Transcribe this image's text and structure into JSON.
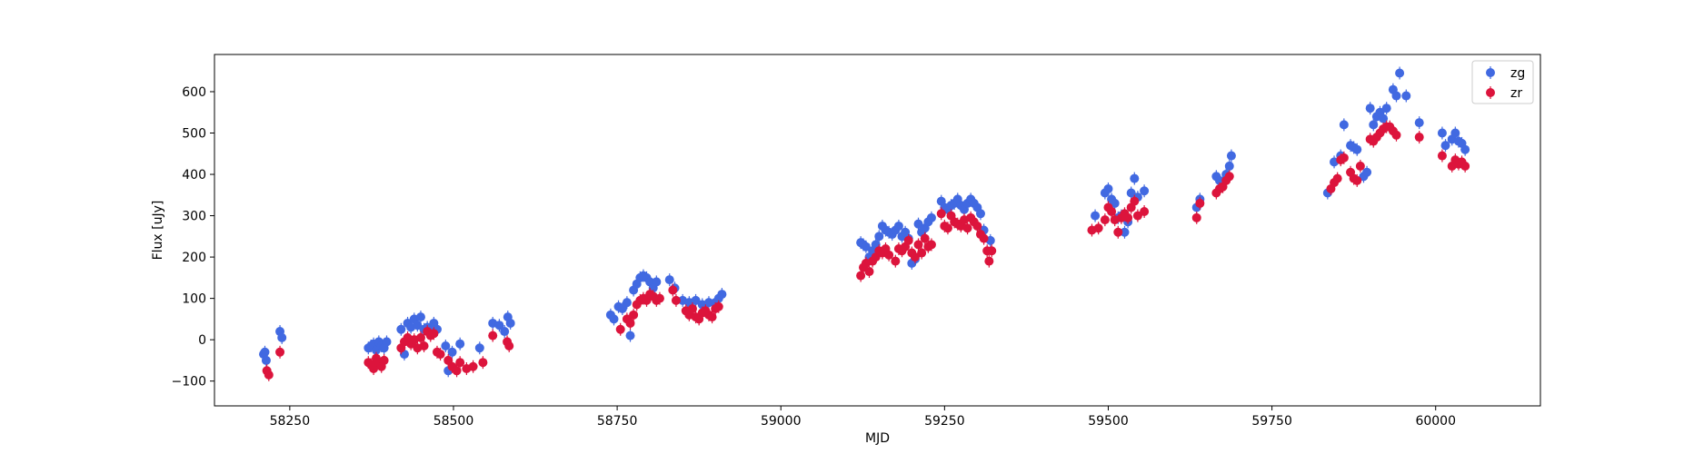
{
  "chart_data": {
    "type": "scatter",
    "title": "",
    "xlabel": "MJD",
    "ylabel": "Flux [uJy]",
    "xlim": [
      58135,
      60160
    ],
    "ylim": [
      -160,
      690
    ],
    "xticks": [
      58250,
      58500,
      58750,
      59000,
      59250,
      59500,
      59750,
      60000
    ],
    "yticks": [
      -100,
      0,
      100,
      200,
      300,
      400,
      500,
      600
    ],
    "grid": false,
    "legend_position": "top-right",
    "error_bars": true,
    "series": [
      {
        "name": "zg",
        "color": "#4169e1",
        "points": [
          [
            58210,
            -35
          ],
          [
            58212,
            -30
          ],
          [
            58214,
            -50
          ],
          [
            58235,
            20
          ],
          [
            58238,
            5
          ],
          [
            58370,
            -20
          ],
          [
            58374,
            -15
          ],
          [
            58378,
            -10
          ],
          [
            58382,
            -25
          ],
          [
            58386,
            -5
          ],
          [
            58390,
            -15
          ],
          [
            58394,
            -20
          ],
          [
            58398,
            -5
          ],
          [
            58420,
            25
          ],
          [
            58425,
            -35
          ],
          [
            58430,
            40
          ],
          [
            58435,
            30
          ],
          [
            58440,
            50
          ],
          [
            58445,
            35
          ],
          [
            58450,
            55
          ],
          [
            58455,
            25
          ],
          [
            58460,
            30
          ],
          [
            58465,
            20
          ],
          [
            58470,
            40
          ],
          [
            58475,
            25
          ],
          [
            58488,
            -15
          ],
          [
            58492,
            -75
          ],
          [
            58498,
            -30
          ],
          [
            58510,
            -10
          ],
          [
            58540,
            -20
          ],
          [
            58560,
            40
          ],
          [
            58570,
            35
          ],
          [
            58578,
            20
          ],
          [
            58583,
            55
          ],
          [
            58587,
            40
          ],
          [
            58740,
            60
          ],
          [
            58745,
            50
          ],
          [
            58752,
            80
          ],
          [
            58758,
            75
          ],
          [
            58765,
            90
          ],
          [
            58770,
            10
          ],
          [
            58775,
            120
          ],
          [
            58780,
            135
          ],
          [
            58785,
            150
          ],
          [
            58790,
            155
          ],
          [
            58795,
            150
          ],
          [
            58800,
            140
          ],
          [
            58805,
            125
          ],
          [
            58810,
            140
          ],
          [
            58830,
            145
          ],
          [
            58838,
            125
          ],
          [
            58850,
            95
          ],
          [
            58860,
            90
          ],
          [
            58870,
            95
          ],
          [
            58880,
            85
          ],
          [
            58890,
            90
          ],
          [
            58900,
            90
          ],
          [
            58905,
            100
          ],
          [
            58910,
            110
          ],
          [
            59122,
            235
          ],
          [
            59126,
            230
          ],
          [
            59130,
            225
          ],
          [
            59135,
            200
          ],
          [
            59140,
            215
          ],
          [
            59145,
            230
          ],
          [
            59150,
            250
          ],
          [
            59155,
            275
          ],
          [
            59160,
            265
          ],
          [
            59165,
            260
          ],
          [
            59170,
            255
          ],
          [
            59175,
            265
          ],
          [
            59180,
            275
          ],
          [
            59185,
            250
          ],
          [
            59190,
            260
          ],
          [
            59195,
            245
          ],
          [
            59200,
            185
          ],
          [
            59205,
            195
          ],
          [
            59210,
            280
          ],
          [
            59215,
            260
          ],
          [
            59220,
            270
          ],
          [
            59225,
            285
          ],
          [
            59230,
            295
          ],
          [
            59245,
            335
          ],
          [
            59250,
            320
          ],
          [
            59255,
            315
          ],
          [
            59260,
            325
          ],
          [
            59265,
            330
          ],
          [
            59270,
            340
          ],
          [
            59275,
            325
          ],
          [
            59280,
            315
          ],
          [
            59285,
            330
          ],
          [
            59290,
            340
          ],
          [
            59295,
            330
          ],
          [
            59300,
            320
          ],
          [
            59305,
            305
          ],
          [
            59310,
            265
          ],
          [
            59320,
            240
          ],
          [
            59480,
            300
          ],
          [
            59495,
            355
          ],
          [
            59500,
            365
          ],
          [
            59505,
            340
          ],
          [
            59510,
            330
          ],
          [
            59515,
            295
          ],
          [
            59520,
            300
          ],
          [
            59525,
            260
          ],
          [
            59530,
            285
          ],
          [
            59535,
            355
          ],
          [
            59540,
            390
          ],
          [
            59545,
            345
          ],
          [
            59555,
            360
          ],
          [
            59635,
            320
          ],
          [
            59640,
            340
          ],
          [
            59665,
            395
          ],
          [
            59670,
            385
          ],
          [
            59675,
            380
          ],
          [
            59680,
            400
          ],
          [
            59685,
            420
          ],
          [
            59688,
            445
          ],
          [
            59835,
            355
          ],
          [
            59845,
            430
          ],
          [
            59855,
            445
          ],
          [
            59860,
            520
          ],
          [
            59870,
            470
          ],
          [
            59875,
            465
          ],
          [
            59880,
            460
          ],
          [
            59890,
            395
          ],
          [
            59895,
            405
          ],
          [
            59900,
            560
          ],
          [
            59905,
            520
          ],
          [
            59910,
            540
          ],
          [
            59915,
            550
          ],
          [
            59920,
            535
          ],
          [
            59925,
            560
          ],
          [
            59935,
            605
          ],
          [
            59940,
            590
          ],
          [
            59945,
            645
          ],
          [
            59955,
            590
          ],
          [
            59975,
            525
          ],
          [
            60010,
            500
          ],
          [
            60015,
            470
          ],
          [
            60025,
            485
          ],
          [
            60030,
            500
          ],
          [
            60035,
            480
          ],
          [
            60040,
            475
          ],
          [
            60045,
            460
          ]
        ]
      },
      {
        "name": "zr",
        "color": "#dc143c",
        "points": [
          [
            58215,
            -75
          ],
          [
            58218,
            -85
          ],
          [
            58235,
            -30
          ],
          [
            58370,
            -55
          ],
          [
            58374,
            -60
          ],
          [
            58378,
            -70
          ],
          [
            58382,
            -45
          ],
          [
            58386,
            -55
          ],
          [
            58390,
            -65
          ],
          [
            58394,
            -50
          ],
          [
            58420,
            -20
          ],
          [
            58425,
            -5
          ],
          [
            58430,
            5
          ],
          [
            58435,
            -10
          ],
          [
            58440,
            0
          ],
          [
            58445,
            -20
          ],
          [
            58450,
            5
          ],
          [
            58455,
            -15
          ],
          [
            58460,
            20
          ],
          [
            58465,
            10
          ],
          [
            58470,
            15
          ],
          [
            58475,
            -30
          ],
          [
            58480,
            -35
          ],
          [
            58492,
            -50
          ],
          [
            58498,
            -65
          ],
          [
            58505,
            -75
          ],
          [
            58510,
            -55
          ],
          [
            58520,
            -70
          ],
          [
            58530,
            -65
          ],
          [
            58545,
            -55
          ],
          [
            58560,
            10
          ],
          [
            58582,
            -5
          ],
          [
            58585,
            -15
          ],
          [
            58755,
            25
          ],
          [
            58765,
            50
          ],
          [
            58770,
            40
          ],
          [
            58775,
            60
          ],
          [
            58780,
            85
          ],
          [
            58785,
            95
          ],
          [
            58790,
            100
          ],
          [
            58795,
            95
          ],
          [
            58800,
            110
          ],
          [
            58805,
            105
          ],
          [
            58810,
            95
          ],
          [
            58815,
            100
          ],
          [
            58835,
            120
          ],
          [
            58840,
            95
          ],
          [
            58855,
            70
          ],
          [
            58860,
            60
          ],
          [
            58865,
            75
          ],
          [
            58870,
            55
          ],
          [
            58875,
            50
          ],
          [
            58880,
            65
          ],
          [
            58885,
            70
          ],
          [
            58890,
            60
          ],
          [
            58895,
            55
          ],
          [
            58900,
            75
          ],
          [
            58905,
            80
          ],
          [
            59122,
            155
          ],
          [
            59126,
            175
          ],
          [
            59130,
            185
          ],
          [
            59135,
            165
          ],
          [
            59140,
            190
          ],
          [
            59145,
            200
          ],
          [
            59150,
            215
          ],
          [
            59155,
            210
          ],
          [
            59160,
            220
          ],
          [
            59165,
            205
          ],
          [
            59175,
            190
          ],
          [
            59180,
            220
          ],
          [
            59185,
            215
          ],
          [
            59190,
            225
          ],
          [
            59195,
            240
          ],
          [
            59200,
            210
          ],
          [
            59205,
            200
          ],
          [
            59210,
            230
          ],
          [
            59215,
            210
          ],
          [
            59220,
            245
          ],
          [
            59225,
            225
          ],
          [
            59230,
            230
          ],
          [
            59245,
            305
          ],
          [
            59250,
            275
          ],
          [
            59255,
            270
          ],
          [
            59260,
            300
          ],
          [
            59265,
            285
          ],
          [
            59270,
            280
          ],
          [
            59275,
            275
          ],
          [
            59280,
            290
          ],
          [
            59285,
            270
          ],
          [
            59290,
            295
          ],
          [
            59295,
            285
          ],
          [
            59300,
            275
          ],
          [
            59305,
            255
          ],
          [
            59310,
            245
          ],
          [
            59315,
            215
          ],
          [
            59318,
            190
          ],
          [
            59322,
            215
          ],
          [
            59475,
            265
          ],
          [
            59485,
            270
          ],
          [
            59495,
            290
          ],
          [
            59500,
            320
          ],
          [
            59505,
            310
          ],
          [
            59510,
            290
          ],
          [
            59515,
            260
          ],
          [
            59520,
            295
          ],
          [
            59525,
            305
          ],
          [
            59530,
            295
          ],
          [
            59535,
            320
          ],
          [
            59540,
            335
          ],
          [
            59545,
            300
          ],
          [
            59555,
            310
          ],
          [
            59635,
            295
          ],
          [
            59640,
            330
          ],
          [
            59665,
            355
          ],
          [
            59670,
            365
          ],
          [
            59675,
            370
          ],
          [
            59680,
            385
          ],
          [
            59685,
            395
          ],
          [
            59840,
            365
          ],
          [
            59845,
            380
          ],
          [
            59850,
            390
          ],
          [
            59855,
            435
          ],
          [
            59860,
            440
          ],
          [
            59870,
            405
          ],
          [
            59875,
            390
          ],
          [
            59880,
            385
          ],
          [
            59885,
            420
          ],
          [
            59900,
            485
          ],
          [
            59905,
            480
          ],
          [
            59910,
            490
          ],
          [
            59915,
            500
          ],
          [
            59920,
            510
          ],
          [
            59925,
            515
          ],
          [
            59930,
            515
          ],
          [
            59935,
            505
          ],
          [
            59940,
            495
          ],
          [
            59975,
            490
          ],
          [
            60010,
            445
          ],
          [
            60025,
            420
          ],
          [
            60030,
            435
          ],
          [
            60035,
            425
          ],
          [
            60040,
            430
          ],
          [
            60045,
            420
          ]
        ]
      }
    ]
  }
}
